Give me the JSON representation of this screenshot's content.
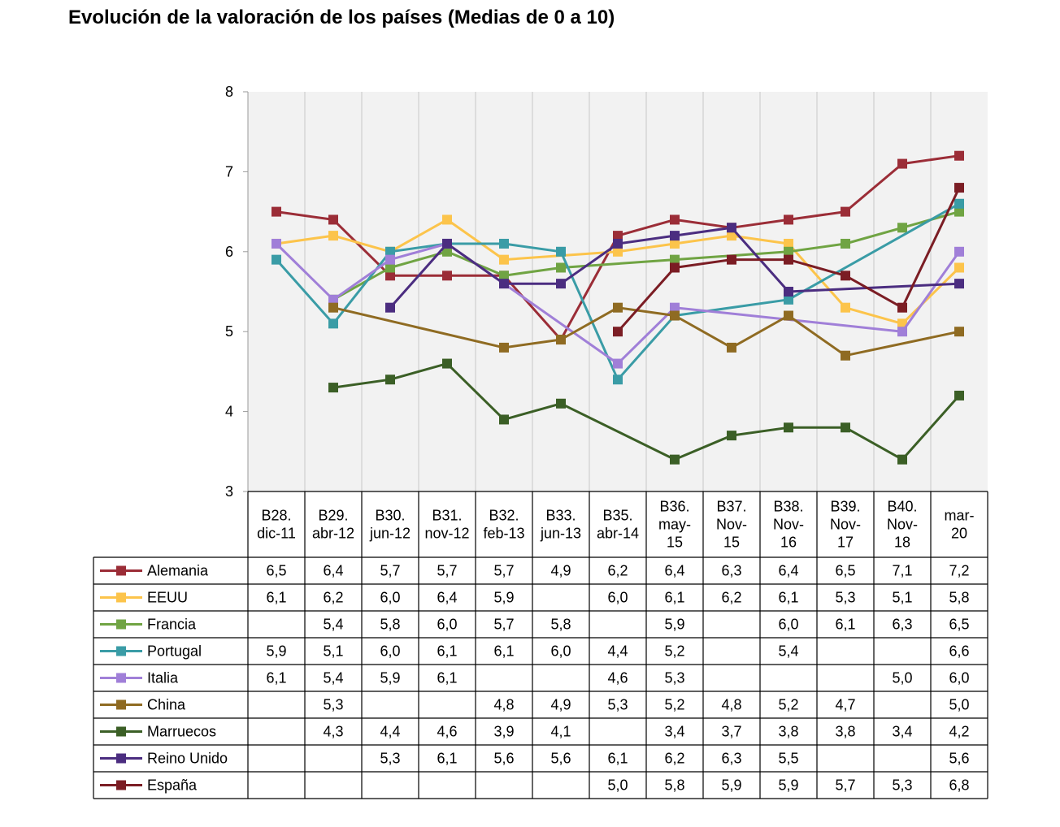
{
  "chart_data": {
    "type": "line",
    "title": "Evolución de la valoración de los países (Medias de 0 a 10)",
    "xlabel": "",
    "ylabel": "",
    "ylim": [
      3,
      8
    ],
    "yticks": [
      "3",
      "4",
      "5",
      "6",
      "7",
      "8"
    ],
    "grid": true,
    "legend": "data-table-left",
    "categories": [
      [
        "B28.",
        "dic-11"
      ],
      [
        "B29.",
        "abr-12"
      ],
      [
        "B30.",
        "jun-12"
      ],
      [
        "B31.",
        "nov-12"
      ],
      [
        "B32.",
        "feb-13"
      ],
      [
        "B33.",
        "jun-13"
      ],
      [
        "B35.",
        "abr-14"
      ],
      [
        "B36.",
        "may-",
        "15"
      ],
      [
        "B37.",
        "Nov-",
        "15"
      ],
      [
        "B38.",
        "Nov-",
        "16"
      ],
      [
        "B39.",
        "Nov-",
        "17"
      ],
      [
        "B40.",
        "Nov-",
        "18"
      ],
      [
        "mar-",
        "20"
      ]
    ],
    "series": [
      {
        "name": "Alemania",
        "color": "#9b2d37",
        "values": [
          6.5,
          6.4,
          5.7,
          5.7,
          5.7,
          4.9,
          6.2,
          6.4,
          6.3,
          6.4,
          6.5,
          7.1,
          7.2
        ],
        "labels": [
          "6,5",
          "6,4",
          "5,7",
          "5,7",
          "5,7",
          "4,9",
          "6,2",
          "6,4",
          "6,3",
          "6,4",
          "6,5",
          "7,1",
          "7,2"
        ]
      },
      {
        "name": "EEUU",
        "color": "#fcc44b",
        "values": [
          6.1,
          6.2,
          6.0,
          6.4,
          5.9,
          null,
          6.0,
          6.1,
          6.2,
          6.1,
          5.3,
          5.1,
          5.8
        ],
        "labels": [
          "6,1",
          "6,2",
          "6,0",
          "6,4",
          "5,9",
          "",
          "6,0",
          "6,1",
          "6,2",
          "6,1",
          "5,3",
          "5,1",
          "5,8"
        ]
      },
      {
        "name": "Francia",
        "color": "#70a443",
        "values": [
          null,
          5.4,
          5.8,
          6.0,
          5.7,
          5.8,
          null,
          5.9,
          null,
          6.0,
          6.1,
          6.3,
          6.5
        ],
        "labels": [
          "",
          "5,4",
          "5,8",
          "6,0",
          "5,7",
          "5,8",
          "",
          "5,9",
          "",
          "6,0",
          "6,1",
          "6,3",
          "6,5"
        ]
      },
      {
        "name": "Portugal",
        "color": "#3a9ca6",
        "values": [
          5.9,
          5.1,
          6.0,
          6.1,
          6.1,
          6.0,
          4.4,
          5.2,
          null,
          5.4,
          null,
          null,
          6.6
        ],
        "labels": [
          "5,9",
          "5,1",
          "6,0",
          "6,1",
          "6,1",
          "6,0",
          "4,4",
          "5,2",
          "",
          "5,4",
          "",
          "",
          "6,6"
        ]
      },
      {
        "name": "Italia",
        "color": "#a07fd8",
        "values": [
          6.1,
          5.4,
          5.9,
          6.1,
          null,
          null,
          4.6,
          5.3,
          null,
          null,
          null,
          5.0,
          6.0
        ],
        "labels": [
          "6,1",
          "5,4",
          "5,9",
          "6,1",
          "",
          "",
          "4,6",
          "5,3",
          "",
          "",
          "",
          "5,0",
          "6,0"
        ]
      },
      {
        "name": "China",
        "color": "#8f6b22",
        "values": [
          null,
          5.3,
          null,
          null,
          4.8,
          4.9,
          5.3,
          5.2,
          4.8,
          5.2,
          4.7,
          null,
          5.0
        ],
        "labels": [
          "",
          "5,3",
          "",
          "",
          "4,8",
          "4,9",
          "5,3",
          "5,2",
          "4,8",
          "5,2",
          "4,7",
          "",
          "5,0"
        ]
      },
      {
        "name": "Marruecos",
        "color": "#3b5f26",
        "values": [
          null,
          4.3,
          4.4,
          4.6,
          3.9,
          4.1,
          null,
          3.4,
          3.7,
          3.8,
          3.8,
          3.4,
          4.2
        ],
        "labels": [
          "",
          "4,3",
          "4,4",
          "4,6",
          "3,9",
          "4,1",
          "",
          "3,4",
          "3,7",
          "3,8",
          "3,8",
          "3,4",
          "4,2"
        ]
      },
      {
        "name": "Reino Unido",
        "color": "#4b2d80",
        "values": [
          null,
          null,
          5.3,
          6.1,
          5.6,
          5.6,
          6.1,
          6.2,
          6.3,
          5.5,
          null,
          null,
          5.6
        ],
        "labels": [
          "",
          "",
          "5,3",
          "6,1",
          "5,6",
          "5,6",
          "6,1",
          "6,2",
          "6,3",
          "5,5",
          "",
          "",
          "5,6"
        ]
      },
      {
        "name": "España",
        "color": "#7b1d24",
        "values": [
          null,
          null,
          null,
          null,
          null,
          null,
          5.0,
          5.8,
          5.9,
          5.9,
          5.7,
          5.3,
          6.8
        ],
        "labels": [
          "",
          "",
          "",
          "",
          "",
          "",
          "5,0",
          "5,8",
          "5,9",
          "5,9",
          "5,7",
          "5,3",
          "6,8"
        ]
      }
    ]
  }
}
